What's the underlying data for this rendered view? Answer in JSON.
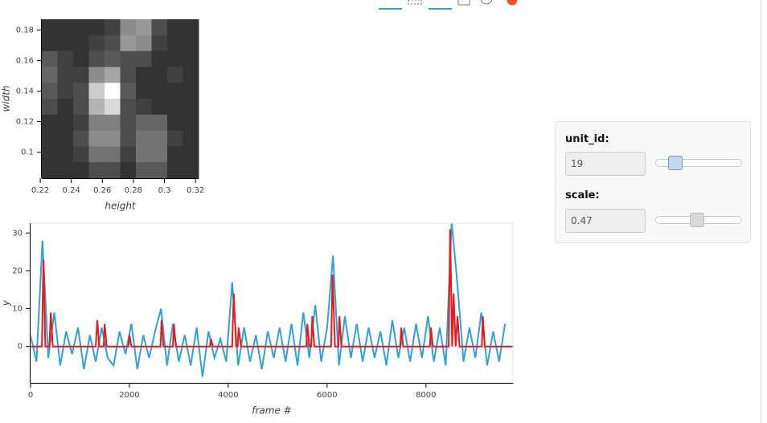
{
  "chart_data": [
    {
      "type": "image",
      "x_label": "height",
      "y_label": "width",
      "xlim": [
        0.221,
        0.322
      ],
      "ylim": [
        0.083,
        0.187
      ],
      "xticks": [
        0.22,
        0.24,
        0.26,
        0.28,
        0.3,
        0.32
      ],
      "yticks": [
        0.1,
        0.12,
        0.14,
        0.16,
        0.18
      ],
      "values": [
        [
          0.2,
          0.2,
          0.2,
          0.2,
          0.25,
          0.55,
          0.6,
          0.3,
          0.2,
          0.2
        ],
        [
          0.2,
          0.2,
          0.2,
          0.25,
          0.3,
          0.6,
          0.55,
          0.25,
          0.2,
          0.2
        ],
        [
          0.35,
          0.25,
          0.2,
          0.3,
          0.35,
          0.3,
          0.3,
          0.2,
          0.2,
          0.2
        ],
        [
          0.4,
          0.25,
          0.25,
          0.55,
          0.65,
          0.3,
          0.2,
          0.2,
          0.25,
          0.2
        ],
        [
          0.35,
          0.25,
          0.3,
          0.8,
          1,
          0.35,
          0.2,
          0.2,
          0.2,
          0.2
        ],
        [
          0.3,
          0.2,
          0.3,
          0.7,
          0.85,
          0.3,
          0.25,
          0.2,
          0.2,
          0.2
        ],
        [
          0.2,
          0.2,
          0.25,
          0.5,
          0.5,
          0.3,
          0.4,
          0.4,
          0.2,
          0.2
        ],
        [
          0.2,
          0.2,
          0.3,
          0.55,
          0.55,
          0.3,
          0.45,
          0.45,
          0.25,
          0.2
        ],
        [
          0.2,
          0.2,
          0.25,
          0.45,
          0.45,
          0.25,
          0.45,
          0.45,
          0.2,
          0.2
        ],
        [
          0.2,
          0.2,
          0.2,
          0.3,
          0.3,
          0.2,
          0.35,
          0.35,
          0.2,
          0.2
        ]
      ]
    },
    {
      "type": "line",
      "x_label": "frame #",
      "y_label": "y",
      "xlim": [
        0,
        9760
      ],
      "ylim": [
        -9.6,
        32.6
      ],
      "xticks": [
        0,
        2000,
        4000,
        6000,
        8000
      ],
      "yticks": [
        0,
        10,
        20,
        30
      ],
      "series": [
        {
          "color": "#30a2da",
          "x": [
            0,
            120,
            240,
            360,
            480,
            600,
            720,
            840,
            960,
            1080,
            1200,
            1320,
            1440,
            1560,
            1680,
            1800,
            1920,
            2040,
            2160,
            2280,
            2400,
            2520,
            2640,
            2760,
            2880,
            3000,
            3120,
            3240,
            3360,
            3480,
            3600,
            3720,
            3840,
            3960,
            4080,
            4200,
            4320,
            4440,
            4560,
            4680,
            4800,
            4920,
            5040,
            5160,
            5280,
            5400,
            5520,
            5640,
            5760,
            5880,
            6000,
            6120,
            6240,
            6360,
            6480,
            6600,
            6720,
            6840,
            6960,
            7080,
            7200,
            7320,
            7440,
            7560,
            7680,
            7800,
            7920,
            8040,
            8160,
            8280,
            8400,
            8520,
            8640,
            8760,
            8880,
            9000,
            9120,
            9240,
            9360,
            9480,
            9600
          ],
          "values": [
            3,
            -4,
            28,
            -3,
            9,
            -5,
            4,
            -2,
            5,
            -6,
            3,
            -4,
            5,
            -3,
            -5,
            4,
            -2,
            6,
            -6,
            3,
            -3,
            4,
            10,
            -5,
            6,
            -4,
            3,
            -5,
            5,
            -8,
            4,
            -3,
            2,
            -4,
            17,
            -5,
            5,
            -4,
            3,
            -6,
            4,
            -3,
            5,
            -4,
            6,
            -5,
            9,
            -3,
            11,
            -4,
            5,
            24,
            -5,
            8,
            -3,
            6,
            -4,
            5,
            -3,
            4,
            -5,
            7,
            -3,
            5,
            -4,
            6,
            -3,
            8,
            -4,
            5,
            -5,
            33,
            16,
            -4,
            5,
            -3,
            9,
            -5,
            4,
            -4,
            6
          ]
        },
        {
          "color": "#e41a1c",
          "x": [
            0,
            230,
            260,
            300,
            380,
            410,
            450,
            1320,
            1350,
            1390,
            1480,
            1500,
            1540,
            1980,
            2000,
            2040,
            2630,
            2650,
            2690,
            2880,
            2900,
            2940,
            3630,
            3650,
            3690,
            4080,
            4110,
            4160,
            4190,
            4210,
            4260,
            5580,
            5600,
            5640,
            5680,
            5700,
            5740,
            6080,
            6110,
            6160,
            6230,
            6250,
            6290,
            7480,
            7500,
            7540,
            8080,
            8100,
            8140,
            8460,
            8490,
            8530,
            8560,
            8600,
            8640,
            8680,
            9130,
            9150,
            9190,
            9760
          ],
          "values": [
            0,
            0,
            23,
            0,
            0,
            9,
            0,
            0,
            7,
            0,
            0,
            6,
            0,
            0,
            3,
            0,
            0,
            7,
            0,
            0,
            6,
            0,
            0,
            2,
            0,
            0,
            14,
            0,
            0,
            5,
            0,
            0,
            6,
            0,
            0,
            8,
            0,
            0,
            19,
            0,
            0,
            8,
            0,
            0,
            5,
            0,
            0,
            5,
            0,
            0,
            31,
            0,
            14,
            0,
            8,
            0,
            0,
            8,
            0,
            0
          ]
        }
      ]
    }
  ],
  "widgets": [
    {
      "label": "unit_id:",
      "value": 19
    },
    {
      "label": "scale:",
      "value": 0.47
    }
  ]
}
